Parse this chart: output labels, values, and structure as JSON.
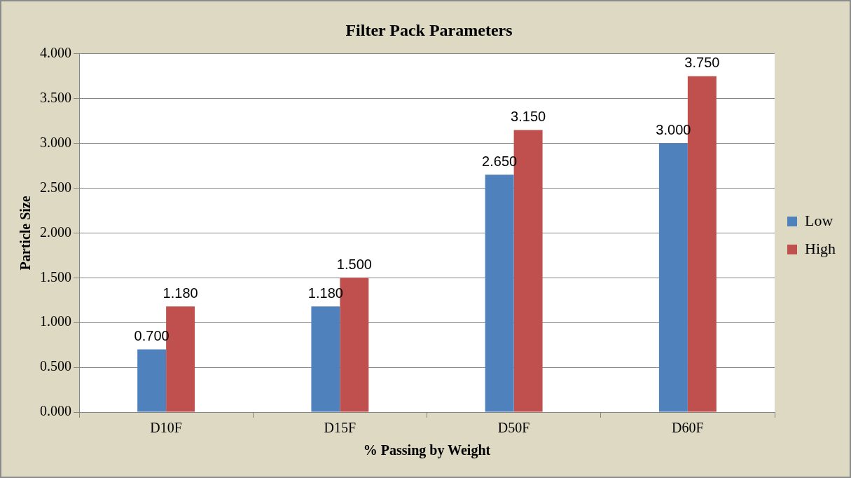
{
  "chart_data": {
    "type": "bar",
    "title": "Filter Pack Parameters",
    "xlabel": "% Passing by Weight",
    "ylabel": "Particle Size",
    "categories": [
      "D10F",
      "D15F",
      "D50F",
      "D60F"
    ],
    "series": [
      {
        "name": "Low",
        "color": "#4f81bd",
        "values": [
          0.7,
          1.18,
          2.65,
          3.0
        ],
        "value_labels": [
          "0.700",
          "1.180",
          "2.650",
          "3.000"
        ]
      },
      {
        "name": "High",
        "color": "#c0504d",
        "values": [
          1.18,
          1.5,
          3.15,
          3.75
        ],
        "value_labels": [
          "1.180",
          "1.500",
          "3.150",
          "3.750"
        ]
      }
    ],
    "ylim": [
      0,
      4
    ],
    "yticks": [
      {
        "value": 0,
        "label": "0.000"
      },
      {
        "value": 0.5,
        "label": "0.500"
      },
      {
        "value": 1,
        "label": "1.000"
      },
      {
        "value": 1.5,
        "label": "1.500"
      },
      {
        "value": 2,
        "label": "2.000"
      },
      {
        "value": 2.5,
        "label": "2.500"
      },
      {
        "value": 3,
        "label": "3.000"
      },
      {
        "value": 3.5,
        "label": "3.500"
      },
      {
        "value": 4,
        "label": "4.000"
      }
    ],
    "grid": "y",
    "legend": "right"
  }
}
